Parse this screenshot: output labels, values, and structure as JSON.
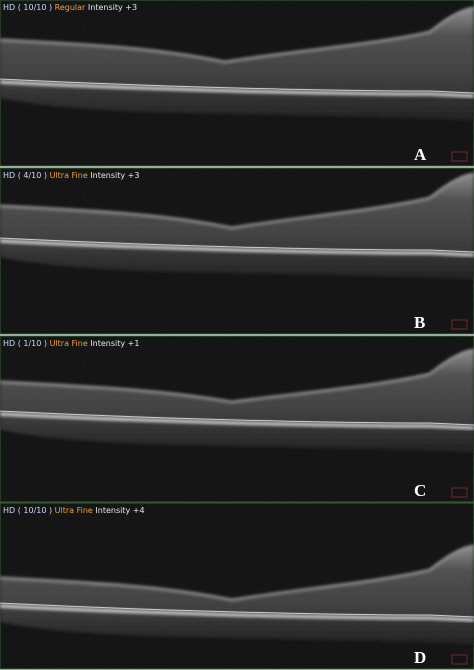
{
  "panels": [
    {
      "scan": "HD ( 10/10 )",
      "mode": "Regular",
      "intensity": "Intensity +3",
      "label": "A"
    },
    {
      "scan": "HD ( 4/10 )",
      "mode": "Ultra Fine",
      "intensity": "Intensity +3",
      "label": "B"
    },
    {
      "scan": "HD ( 1/10 )",
      "mode": "Ultra Fine",
      "intensity": "Intensity +1",
      "label": "C"
    },
    {
      "scan": "HD ( 10/10 )",
      "mode": "Ultra Fine",
      "intensity": "Intensity +4",
      "label": "D"
    }
  ]
}
